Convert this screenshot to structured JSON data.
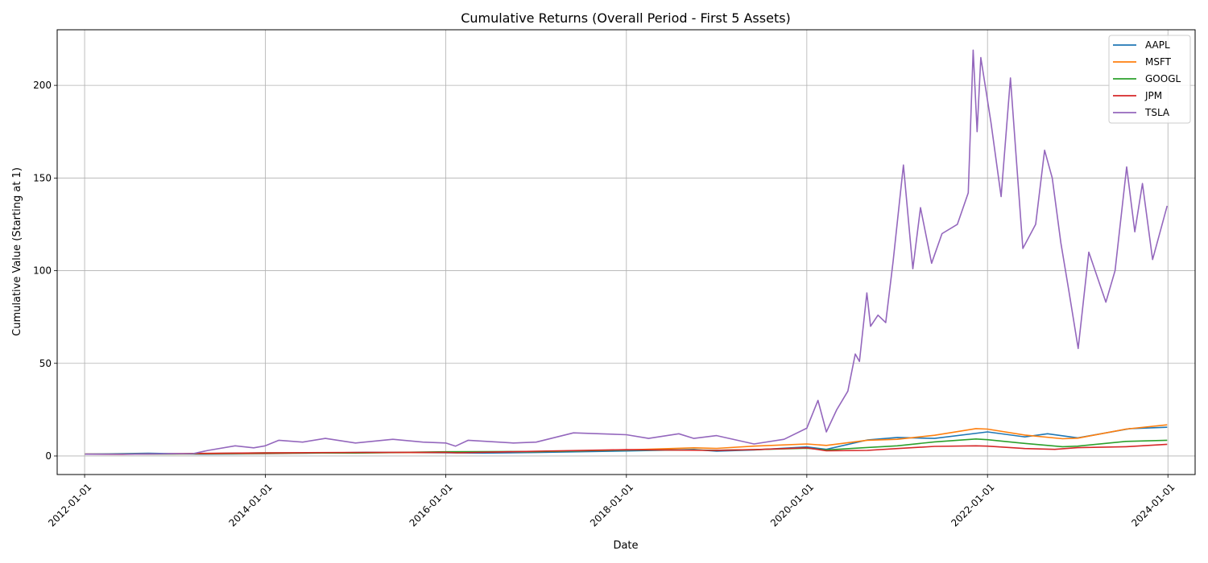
{
  "chart_data": {
    "type": "line",
    "title": "Cumulative Returns (Overall Period - First 5 Assets)",
    "xlabel": "Date",
    "ylabel": "Cumulative Value (Starting at 1)",
    "x_range": [
      "2011-09-12",
      "2024-04-20"
    ],
    "ylim": [
      -10,
      230
    ],
    "x_ticks": [
      "2012-01-01",
      "2014-01-01",
      "2016-01-01",
      "2018-01-01",
      "2020-01-01",
      "2022-01-01",
      "2024-01-01"
    ],
    "y_ticks": [
      0,
      50,
      100,
      150,
      200
    ],
    "grid": true,
    "legend_position": "top-right",
    "series": [
      {
        "name": "AAPL",
        "color": "#1f77b4",
        "points": [
          [
            "2012-01-03",
            1.0
          ],
          [
            "2012-09-15",
            1.45
          ],
          [
            "2013-04-15",
            1.0
          ],
          [
            "2014-01-01",
            1.2
          ],
          [
            "2015-02-15",
            2.0
          ],
          [
            "2016-01-01",
            1.7
          ],
          [
            "2016-06-01",
            1.6
          ],
          [
            "2017-01-01",
            1.9
          ],
          [
            "2018-01-01",
            2.7
          ],
          [
            "2018-10-01",
            3.5
          ],
          [
            "2019-01-01",
            2.6
          ],
          [
            "2019-06-01",
            3.3
          ],
          [
            "2020-01-01",
            4.9
          ],
          [
            "2020-03-20",
            3.6
          ],
          [
            "2020-09-01",
            8.6
          ],
          [
            "2021-01-01",
            10.0
          ],
          [
            "2021-06-01",
            9.5
          ],
          [
            "2022-01-01",
            13.0
          ],
          [
            "2022-06-01",
            10.3
          ],
          [
            "2022-09-01",
            12.0
          ],
          [
            "2023-01-01",
            9.8
          ],
          [
            "2023-07-31",
            14.8
          ],
          [
            "2023-12-29",
            15.5
          ]
        ]
      },
      {
        "name": "MSFT",
        "color": "#ff7f0e",
        "points": [
          [
            "2012-01-03",
            1.0
          ],
          [
            "2013-01-01",
            1.05
          ],
          [
            "2014-01-01",
            1.4
          ],
          [
            "2015-01-01",
            1.7
          ],
          [
            "2016-01-01",
            2.0
          ],
          [
            "2017-01-01",
            2.4
          ],
          [
            "2018-01-01",
            3.3
          ],
          [
            "2018-10-01",
            4.4
          ],
          [
            "2019-01-01",
            4.1
          ],
          [
            "2019-06-01",
            5.3
          ],
          [
            "2020-01-01",
            6.5
          ],
          [
            "2020-03-20",
            5.7
          ],
          [
            "2020-09-01",
            8.5
          ],
          [
            "2021-01-01",
            9.0
          ],
          [
            "2021-06-01",
            11.2
          ],
          [
            "2021-11-15",
            14.8
          ],
          [
            "2022-01-01",
            14.5
          ],
          [
            "2022-06-01",
            11.3
          ],
          [
            "2022-11-01",
            9.3
          ],
          [
            "2023-01-01",
            9.6
          ],
          [
            "2023-07-15",
            14.5
          ],
          [
            "2023-12-29",
            16.8
          ]
        ]
      },
      {
        "name": "GOOGL",
        "color": "#2ca02c",
        "points": [
          [
            "2012-01-03",
            1.0
          ],
          [
            "2013-01-01",
            1.1
          ],
          [
            "2014-01-01",
            1.7
          ],
          [
            "2015-01-01",
            1.6
          ],
          [
            "2016-01-01",
            2.3
          ],
          [
            "2017-01-01",
            2.4
          ],
          [
            "2018-01-01",
            3.3
          ],
          [
            "2018-10-01",
            3.2
          ],
          [
            "2019-01-01",
            3.1
          ],
          [
            "2019-06-01",
            3.4
          ],
          [
            "2020-01-01",
            4.2
          ],
          [
            "2020-03-20",
            3.3
          ],
          [
            "2020-09-01",
            4.6
          ],
          [
            "2021-01-01",
            5.5
          ],
          [
            "2021-06-01",
            7.6
          ],
          [
            "2021-11-15",
            9.2
          ],
          [
            "2022-01-01",
            8.8
          ],
          [
            "2022-06-01",
            6.8
          ],
          [
            "2022-11-01",
            5.0
          ],
          [
            "2023-01-01",
            5.3
          ],
          [
            "2023-07-15",
            7.9
          ],
          [
            "2023-12-29",
            8.5
          ]
        ]
      },
      {
        "name": "JPM",
        "color": "#d62728",
        "points": [
          [
            "2012-01-03",
            1.0
          ],
          [
            "2012-06-01",
            0.9
          ],
          [
            "2013-01-01",
            1.3
          ],
          [
            "2014-01-01",
            1.7
          ],
          [
            "2015-01-01",
            1.9
          ],
          [
            "2016-01-01",
            2.0
          ],
          [
            "2016-02-15",
            1.7
          ],
          [
            "2017-01-01",
            2.6
          ],
          [
            "2018-01-01",
            3.4
          ],
          [
            "2018-12-24",
            3.0
          ],
          [
            "2019-06-01",
            3.4
          ],
          [
            "2020-01-01",
            4.4
          ],
          [
            "2020-03-20",
            2.8
          ],
          [
            "2020-09-01",
            3.0
          ],
          [
            "2021-01-01",
            4.0
          ],
          [
            "2021-06-01",
            5.2
          ],
          [
            "2021-11-15",
            5.5
          ],
          [
            "2022-01-01",
            5.3
          ],
          [
            "2022-06-01",
            4.0
          ],
          [
            "2022-09-30",
            3.6
          ],
          [
            "2023-01-01",
            4.5
          ],
          [
            "2023-07-15",
            5.0
          ],
          [
            "2023-12-29",
            6.3
          ]
        ]
      },
      {
        "name": "TSLA",
        "color": "#9467bd",
        "points": [
          [
            "2012-01-03",
            1.0
          ],
          [
            "2012-07-01",
            1.0
          ],
          [
            "2013-01-01",
            1.2
          ],
          [
            "2013-03-15",
            1.3
          ],
          [
            "2013-05-15",
            3.0
          ],
          [
            "2013-09-01",
            5.5
          ],
          [
            "2013-11-15",
            4.4
          ],
          [
            "2014-01-01",
            5.5
          ],
          [
            "2014-02-25",
            8.5
          ],
          [
            "2014-06-01",
            7.5
          ],
          [
            "2014-09-01",
            9.5
          ],
          [
            "2015-01-01",
            7.0
          ],
          [
            "2015-06-01",
            9.0
          ],
          [
            "2015-10-01",
            7.5
          ],
          [
            "2016-01-01",
            7.0
          ],
          [
            "2016-02-10",
            5.3
          ],
          [
            "2016-04-01",
            8.5
          ],
          [
            "2016-10-01",
            7.0
          ],
          [
            "2017-01-01",
            7.5
          ],
          [
            "2017-06-01",
            12.5
          ],
          [
            "2017-09-15",
            12.0
          ],
          [
            "2018-01-01",
            11.5
          ],
          [
            "2018-04-01",
            9.5
          ],
          [
            "2018-08-01",
            12.0
          ],
          [
            "2018-10-01",
            9.5
          ],
          [
            "2019-01-01",
            11.0
          ],
          [
            "2019-06-01",
            6.5
          ],
          [
            "2019-10-01",
            9.0
          ],
          [
            "2020-01-01",
            15.0
          ],
          [
            "2020-02-15",
            30.0
          ],
          [
            "2020-03-20",
            13.0
          ],
          [
            "2020-05-01",
            25.0
          ],
          [
            "2020-06-15",
            35.0
          ],
          [
            "2020-07-15",
            55.0
          ],
          [
            "2020-08-01",
            51.0
          ],
          [
            "2020-08-31",
            88.0
          ],
          [
            "2020-09-15",
            70.0
          ],
          [
            "2020-10-15",
            76.0
          ],
          [
            "2020-11-15",
            72.0
          ],
          [
            "2020-12-15",
            105.0
          ],
          [
            "2021-01-26",
            157.0
          ],
          [
            "2021-03-05",
            101.0
          ],
          [
            "2021-04-05",
            134.0
          ],
          [
            "2021-05-20",
            104.0
          ],
          [
            "2021-07-01",
            120.0
          ],
          [
            "2021-09-01",
            125.0
          ],
          [
            "2021-10-15",
            142.0
          ],
          [
            "2021-11-04",
            219.0
          ],
          [
            "2021-11-20",
            175.0
          ],
          [
            "2021-12-05",
            215.0
          ],
          [
            "2022-01-15",
            180.0
          ],
          [
            "2022-02-25",
            140.0
          ],
          [
            "2022-04-04",
            204.0
          ],
          [
            "2022-04-25",
            165.0
          ],
          [
            "2022-05-24",
            112.0
          ],
          [
            "2022-07-15",
            125.0
          ],
          [
            "2022-08-20",
            165.0
          ],
          [
            "2022-09-20",
            150.0
          ],
          [
            "2022-10-25",
            115.0
          ],
          [
            "2022-11-25",
            90.0
          ],
          [
            "2023-01-03",
            58.0
          ],
          [
            "2023-02-15",
            110.0
          ],
          [
            "2023-04-25",
            83.0
          ],
          [
            "2023-06-01",
            100.0
          ],
          [
            "2023-07-18",
            156.0
          ],
          [
            "2023-08-20",
            121.0
          ],
          [
            "2023-09-20",
            147.0
          ],
          [
            "2023-10-31",
            106.0
          ],
          [
            "2023-12-29",
            135.0
          ]
        ]
      }
    ]
  }
}
